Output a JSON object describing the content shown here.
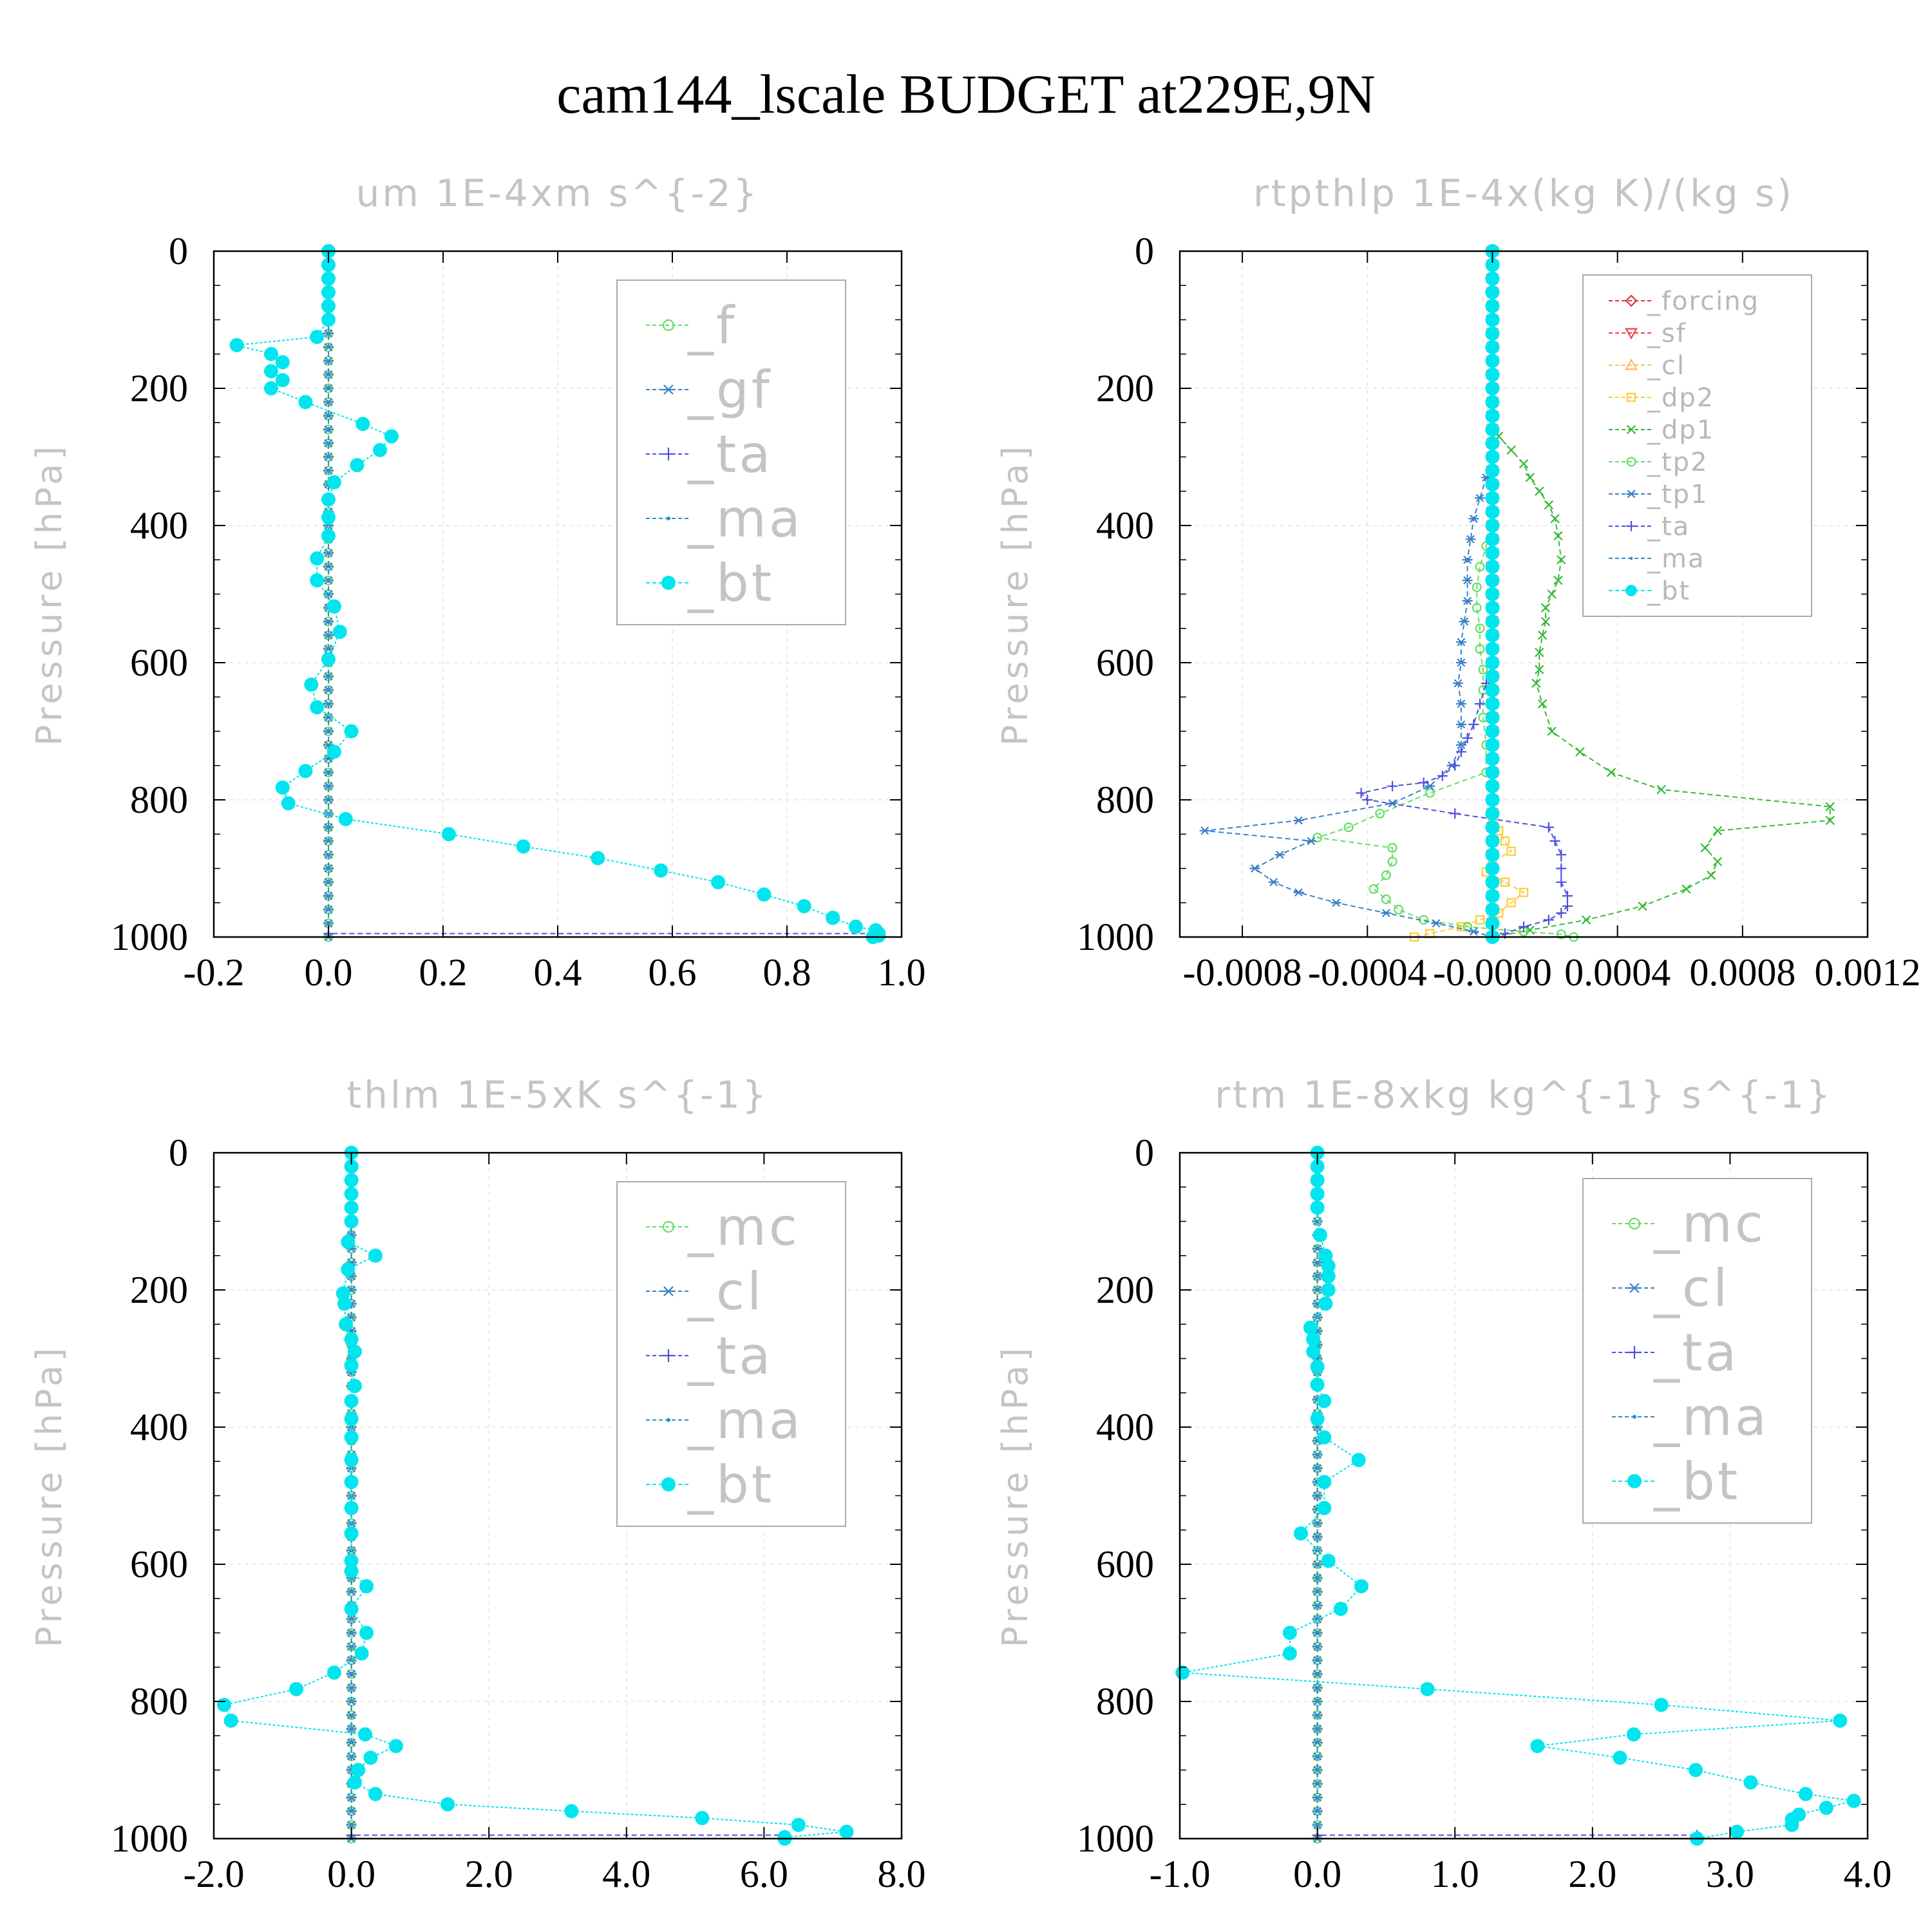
{
  "suptitle": "cam144_lscale  BUDGET at229E,9N",
  "colors": {
    "bt": "#00e5ee",
    "ma": "#2a8fd0",
    "ta": "#5050dd",
    "tp1": "#3a80c8",
    "tp2": "#66dd66",
    "dp1": "#33bb33",
    "dp2": "#ffcc33",
    "cl": "#ffbb55",
    "sf": "#ee4444",
    "forcing": "#dd3333",
    "f": "#66dd66",
    "gf": "#3a80c8",
    "mc": "#66dd66",
    "clm": "#3a80c8"
  },
  "chart_data": [
    {
      "type": "line",
      "title": "um   1E-4xm s^{-2}",
      "ylabel": "Pressure [hPa]",
      "xlim": [
        -0.2,
        1.0
      ],
      "ylim": [
        1000,
        0
      ],
      "xticks": [
        "-0.2",
        "0.0",
        "0.2",
        "0.4",
        "0.6",
        "0.8",
        "1.0"
      ],
      "xtick_values": [
        -0.2,
        0.0,
        0.2,
        0.4,
        0.6,
        0.8,
        1.0
      ],
      "yticks": [
        "0",
        "200",
        "400",
        "600",
        "800",
        "1000"
      ],
      "ytick_values": [
        0,
        200,
        400,
        600,
        800,
        1000
      ],
      "grid": true,
      "legend": "top-right",
      "legend_size": "large",
      "series": [
        {
          "name": "_f",
          "marker": "circle",
          "color": "#66dd66",
          "const_x": 0.0
        },
        {
          "name": "_gf",
          "marker": "star",
          "color": "#3a80c8",
          "const_x": 0.0
        },
        {
          "name": "_ta",
          "marker": "plus",
          "color": "#5050dd",
          "const_x": 0.0,
          "x": [
            0.0,
            0.0,
            0.96
          ],
          "y": [
            0,
            995,
            995
          ]
        },
        {
          "name": "_ma",
          "marker": "dot",
          "color": "#2a8fd0",
          "const_x": 0.0
        },
        {
          "name": "_bt",
          "marker": "filled",
          "color": "#00e5ee",
          "x": [
            0.0,
            0.0,
            0.0,
            0.0,
            0.0,
            0.0,
            -0.02,
            -0.16,
            -0.1,
            -0.08,
            -0.1,
            -0.08,
            -0.1,
            -0.04,
            0.06,
            0.11,
            0.09,
            0.05,
            0.01,
            0.0,
            0.0,
            0.0,
            -0.02,
            -0.02,
            0.01,
            0.02,
            0.0,
            -0.03,
            -0.02,
            0.04,
            0.01,
            -0.04,
            -0.08,
            -0.07,
            0.03,
            0.21,
            0.34,
            0.47,
            0.58,
            0.68,
            0.76,
            0.83,
            0.88,
            0.92,
            0.955,
            0.96,
            0.96,
            0.95
          ],
          "y": [
            0,
            20,
            40,
            60,
            80,
            100,
            125,
            137,
            150,
            162,
            175,
            188,
            200,
            220,
            252,
            270,
            290,
            312,
            337,
            362,
            388,
            415,
            448,
            480,
            518,
            555,
            595,
            632,
            665,
            700,
            730,
            758,
            782,
            805,
            828,
            850,
            868,
            885,
            903,
            920,
            938,
            955,
            972,
            985,
            990,
            995,
            998,
            1000
          ]
        }
      ]
    },
    {
      "type": "line",
      "title": "rtpthlp   1E-4x(kg K)/(kg s)",
      "ylabel": "Pressure [hPa]",
      "xlim": [
        -0.001,
        0.0012
      ],
      "ylim": [
        1000,
        0
      ],
      "xticks": [
        "-0.0008",
        "-0.0004",
        "-0.0000",
        "0.0004",
        "0.0008",
        "0.0012"
      ],
      "xtick_values": [
        -0.0008,
        -0.0004,
        0.0,
        0.0004,
        0.0008,
        0.0012
      ],
      "yticks": [
        "0",
        "200",
        "400",
        "600",
        "800",
        "1000"
      ],
      "ytick_values": [
        0,
        200,
        400,
        600,
        800,
        1000
      ],
      "grid": true,
      "legend": "top-right",
      "legend_size": "small",
      "series": [
        {
          "name": "_forcing",
          "marker": "diamond",
          "color": "#dd3333",
          "const_x": 0.0
        },
        {
          "name": "_sf",
          "marker": "tri-down",
          "color": "#ee4444",
          "const_x": 0.0
        },
        {
          "name": "_cl",
          "marker": "tri-up",
          "color": "#ffbb55",
          "const_x": 0.0
        },
        {
          "name": "_dp2",
          "marker": "square",
          "color": "#ffcc33",
          "x": [
            0.0,
            0.0,
            0.0,
            2e-05,
            4e-05,
            6e-05,
            0.0,
            -2e-05,
            4e-05,
            0.0001,
            6e-05,
            2e-05,
            -4e-05,
            -0.0001,
            -0.0002,
            -0.00025
          ],
          "y": [
            0,
            800,
            830,
            845,
            860,
            875,
            890,
            905,
            920,
            935,
            950,
            965,
            975,
            985,
            995,
            1000
          ]
        },
        {
          "name": "_dp1",
          "marker": "x",
          "color": "#33bb33",
          "x": [
            0.0,
            0.0,
            2e-05,
            6e-05,
            0.0001,
            0.00012,
            0.00015,
            0.00018,
            0.0002,
            0.00021,
            0.00022,
            0.00021,
            0.00019,
            0.00017,
            0.00017,
            0.00016,
            0.00015,
            0.00015,
            0.00014,
            0.00016,
            0.00019,
            0.00028,
            0.00038,
            0.00054,
            0.00108,
            0.00108,
            0.00072,
            0.00068,
            0.00072,
            0.0007,
            0.00062,
            0.00048,
            0.0003,
            0.00012,
            0.0
          ],
          "y": [
            0,
            250,
            270,
            290,
            310,
            330,
            350,
            370,
            390,
            415,
            450,
            480,
            500,
            520,
            540,
            560,
            585,
            610,
            630,
            660,
            700,
            730,
            760,
            785,
            810,
            830,
            845,
            870,
            890,
            910,
            930,
            955,
            975,
            990,
            1000
          ]
        },
        {
          "name": "_tp2",
          "marker": "circle",
          "color": "#66dd66",
          "x": [
            0.0,
            0.0,
            -2e-05,
            -4e-05,
            -5e-05,
            -5e-05,
            -4e-05,
            -4e-05,
            -3e-05,
            -3e-05,
            -3e-05,
            -2e-05,
            -2e-05,
            -0.0002,
            -0.00036,
            -0.00046,
            -0.00056,
            -0.00032,
            -0.00032,
            -0.00034,
            -0.00038,
            -0.00034,
            -0.0003,
            -0.00022,
            -8e-05,
            0.0001,
            0.00022,
            0.00026
          ],
          "y": [
            0,
            400,
            430,
            460,
            490,
            520,
            550,
            580,
            610,
            640,
            680,
            720,
            760,
            790,
            820,
            840,
            855,
            870,
            890,
            910,
            930,
            945,
            960,
            975,
            985,
            992,
            996,
            1000
          ]
        },
        {
          "name": "_tp1",
          "marker": "star",
          "color": "#3a80c8",
          "x": [
            0.0,
            0.0,
            -2e-05,
            -4e-05,
            -6e-05,
            -7e-05,
            -8e-05,
            -8e-05,
            -8e-05,
            -9e-05,
            -0.0001,
            -0.0001,
            -0.00011,
            -0.0001,
            -0.0001,
            -0.0001,
            -0.00013,
            -0.0002,
            -0.00032,
            -0.00062,
            -0.00092,
            -0.00058,
            -0.00068,
            -0.00076,
            -0.0007,
            -0.00062,
            -0.0005,
            -0.00034,
            -0.00018,
            -6e-05,
            0.0
          ],
          "y": [
            0,
            300,
            330,
            360,
            390,
            420,
            450,
            480,
            510,
            540,
            570,
            600,
            630,
            660,
            690,
            720,
            750,
            780,
            805,
            830,
            845,
            860,
            880,
            900,
            920,
            935,
            950,
            965,
            980,
            992,
            1000
          ]
        },
        {
          "name": "_ta",
          "marker": "plus",
          "color": "#5050dd",
          "x": [
            0.0,
            0.0,
            -2e-05,
            -4e-05,
            -6e-05,
            -8e-05,
            -0.0001,
            -0.00012,
            -0.00016,
            -0.00022,
            -0.00032,
            -0.00042,
            -0.0004,
            -0.00012,
            0.00018,
            0.0002,
            0.00022,
            0.00022,
            0.00022,
            0.00024,
            0.00024,
            0.00022,
            0.00018,
            0.0001,
            4e-05,
            0.0
          ],
          "y": [
            0,
            600,
            630,
            660,
            690,
            710,
            730,
            750,
            765,
            775,
            780,
            790,
            800,
            820,
            840,
            860,
            880,
            900,
            920,
            940,
            955,
            965,
            975,
            985,
            995,
            1000
          ]
        },
        {
          "name": "_ma",
          "marker": "dot",
          "color": "#2a8fd0",
          "const_x": 0.0
        },
        {
          "name": "_bt",
          "marker": "filled",
          "color": "#00e5ee",
          "const_x": 0.0
        }
      ]
    },
    {
      "type": "line",
      "title": "thlm   1E-5xK s^{-1}",
      "ylabel": "Pressure [hPa]",
      "xlim": [
        -2.0,
        8.0
      ],
      "ylim": [
        1000,
        0
      ],
      "xticks": [
        "-2.0",
        "0.0",
        "2.0",
        "4.0",
        "6.0",
        "8.0"
      ],
      "xtick_values": [
        -2.0,
        0.0,
        2.0,
        4.0,
        6.0,
        8.0
      ],
      "yticks": [
        "0",
        "200",
        "400",
        "600",
        "800",
        "1000"
      ],
      "ytick_values": [
        0,
        200,
        400,
        600,
        800,
        1000
      ],
      "grid": true,
      "legend": "top-right",
      "legend_size": "large",
      "series": [
        {
          "name": "_mc",
          "marker": "circle",
          "color": "#66dd66",
          "const_x": 0.0
        },
        {
          "name": "_cl",
          "marker": "star",
          "color": "#3a80c8",
          "const_x": 0.0
        },
        {
          "name": "_ta",
          "marker": "plus",
          "color": "#5050dd",
          "const_x": 0.0,
          "x": [
            0.0,
            0.0,
            6.3
          ],
          "y": [
            0,
            995,
            995
          ]
        },
        {
          "name": "_ma",
          "marker": "dot",
          "color": "#2a8fd0",
          "const_x": 0.0
        },
        {
          "name": "_bt",
          "marker": "filled",
          "color": "#00e5ee",
          "x": [
            0.0,
            0.0,
            0.0,
            0.0,
            0.0,
            0.0,
            -0.05,
            0.35,
            -0.05,
            -0.12,
            -0.1,
            -0.08,
            0.0,
            0.05,
            0.0,
            0.05,
            0.0,
            0.0,
            0.0,
            0.0,
            0.0,
            0.0,
            0.0,
            0.0,
            0.0,
            0.22,
            0.0,
            0.22,
            0.15,
            -0.25,
            -0.8,
            -1.85,
            -1.75,
            0.2,
            0.65,
            0.28,
            0.1,
            0.05,
            0.35,
            1.4,
            3.2,
            5.1,
            6.5,
            7.2,
            6.3,
            6.3
          ],
          "y": [
            0,
            20,
            40,
            60,
            80,
            100,
            130,
            150,
            170,
            205,
            220,
            250,
            272,
            290,
            310,
            340,
            362,
            388,
            415,
            448,
            480,
            518,
            555,
            595,
            610,
            632,
            665,
            700,
            730,
            758,
            782,
            805,
            828,
            848,
            865,
            882,
            900,
            918,
            935,
            950,
            960,
            970,
            980,
            990,
            998,
            1000
          ]
        }
      ]
    },
    {
      "type": "line",
      "title": "rtm   1E-8xkg kg^{-1} s^{-1}",
      "ylabel": "Pressure [hPa]",
      "xlim": [
        -1.0,
        4.0
      ],
      "ylim": [
        1000,
        0
      ],
      "xticks": [
        "-1.0",
        "0.0",
        "1.0",
        "2.0",
        "3.0",
        "4.0"
      ],
      "xtick_values": [
        -1.0,
        0.0,
        1.0,
        2.0,
        3.0,
        4.0
      ],
      "yticks": [
        "0",
        "200",
        "400",
        "600",
        "800",
        "1000"
      ],
      "ytick_values": [
        0,
        200,
        400,
        600,
        800,
        1000
      ],
      "grid": true,
      "legend": "top-right",
      "legend_size": "large",
      "series": [
        {
          "name": "_mc",
          "marker": "circle",
          "color": "#66dd66",
          "const_x": 0.0
        },
        {
          "name": "_cl",
          "marker": "star",
          "color": "#3a80c8",
          "const_x": 0.0
        },
        {
          "name": "_ta",
          "marker": "plus",
          "color": "#5050dd",
          "const_x": 0.0,
          "x": [
            0.0,
            0.0,
            2.76
          ],
          "y": [
            0,
            995,
            995
          ]
        },
        {
          "name": "_ma",
          "marker": "dot",
          "color": "#2a8fd0",
          "const_x": 0.0
        },
        {
          "name": "_bt",
          "marker": "filled",
          "color": "#00e5ee",
          "x": [
            0.0,
            0.0,
            0.0,
            0.0,
            0.0,
            0.02,
            0.06,
            0.08,
            0.08,
            0.08,
            0.06,
            -0.05,
            -0.03,
            -0.03,
            0.0,
            0.0,
            0.05,
            0.0,
            0.05,
            0.3,
            0.05,
            0.05,
            -0.12,
            0.08,
            0.32,
            0.17,
            -0.2,
            -0.2,
            -0.98,
            0.8,
            2.5,
            3.8,
            2.3,
            1.6,
            2.2,
            2.75,
            3.15,
            3.55,
            3.9,
            3.7,
            3.5,
            3.45,
            3.45,
            3.05,
            2.76
          ],
          "y": [
            0,
            20,
            40,
            60,
            80,
            120,
            150,
            165,
            180,
            200,
            220,
            255,
            272,
            290,
            312,
            338,
            362,
            388,
            415,
            448,
            480,
            518,
            555,
            595,
            632,
            665,
            700,
            730,
            758,
            782,
            805,
            828,
            848,
            865,
            882,
            900,
            918,
            935,
            945,
            955,
            965,
            972,
            980,
            990,
            1000
          ]
        }
      ]
    }
  ]
}
